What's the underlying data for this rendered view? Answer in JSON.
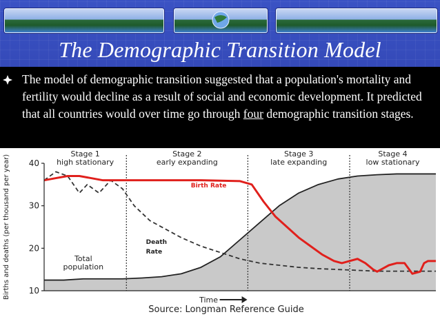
{
  "slide": {
    "title": "The Demographic Transition Model",
    "bullet_icon": "diamond-bullet-icon",
    "paragraph_before": "The model of demographic transition suggested that a population's mortality and fertility would decline as a result of social and economic development. It predicted that all countries would over time go through ",
    "paragraph_emphasis": "four",
    "paragraph_after": " demographic transition stages."
  },
  "chart_data": {
    "type": "line",
    "ylabel": "Births and deaths (per thousand per year)",
    "xlabel": "Time",
    "source": "Source: Longman Reference Guide",
    "yticks": [
      10,
      20,
      30,
      40
    ],
    "ylim": [
      10,
      40
    ],
    "xlim": [
      0,
      100
    ],
    "stages": [
      {
        "line1": "Stage 1",
        "line2": "high stationary",
        "start": 0,
        "end": 21
      },
      {
        "line1": "Stage 2",
        "line2": "early expanding",
        "start": 21,
        "end": 52
      },
      {
        "line1": "Stage 3",
        "line2": "late expanding",
        "start": 52,
        "end": 78
      },
      {
        "line1": "Stage 4",
        "line2": "low stationary",
        "start": 78,
        "end": 100
      }
    ],
    "series": [
      {
        "name": "Birth Rate",
        "color": "#e0201c",
        "x": [
          0,
          3,
          6,
          9,
          12,
          15,
          20,
          30,
          40,
          50,
          53,
          56,
          59,
          62,
          65,
          68,
          71,
          74,
          76,
          78,
          80,
          82,
          84,
          85,
          86,
          88,
          90,
          92,
          94,
          96,
          97,
          98,
          100
        ],
        "y": [
          36,
          36.5,
          37,
          37,
          36.5,
          36,
          36,
          36,
          36,
          35.8,
          35,
          31,
          27.5,
          25,
          22.5,
          20.5,
          18.5,
          17,
          16.5,
          17,
          17.5,
          16.5,
          15,
          14.5,
          15,
          16,
          16.5,
          16.5,
          14,
          14.5,
          16.5,
          17,
          17
        ]
      },
      {
        "name": "Death Rate",
        "label_line1": "Death",
        "label_line2": "Rate",
        "color": "#333333",
        "dashed": true,
        "x": [
          0,
          3,
          6,
          9,
          11,
          14,
          17,
          20,
          23,
          27,
          31,
          35,
          40,
          45,
          50,
          55,
          60,
          65,
          70,
          75,
          80,
          85,
          90,
          95,
          100
        ],
        "y": [
          36,
          38,
          37,
          33,
          35,
          33,
          36,
          34,
          30,
          26.5,
          24.5,
          22.5,
          20.5,
          19,
          17.5,
          16.5,
          16,
          15.5,
          15.2,
          15,
          14.8,
          14.6,
          14.6,
          14.6,
          14.6
        ]
      },
      {
        "name": "Total population",
        "label_line1": "Total",
        "label_line2": "population",
        "color": "#222222",
        "fill": "#c9c9c9",
        "x": [
          0,
          5,
          10,
          15,
          20,
          25,
          30,
          35,
          40,
          45,
          50,
          55,
          60,
          65,
          70,
          75,
          80,
          85,
          90,
          95,
          100
        ],
        "y": [
          12.5,
          12.5,
          12.8,
          12.8,
          12.8,
          13,
          13.3,
          14,
          15.5,
          18,
          22,
          26,
          30,
          33,
          35,
          36.3,
          37,
          37.3,
          37.5,
          37.5,
          37.5
        ]
      }
    ],
    "grid": false,
    "legend": "inline labels"
  }
}
